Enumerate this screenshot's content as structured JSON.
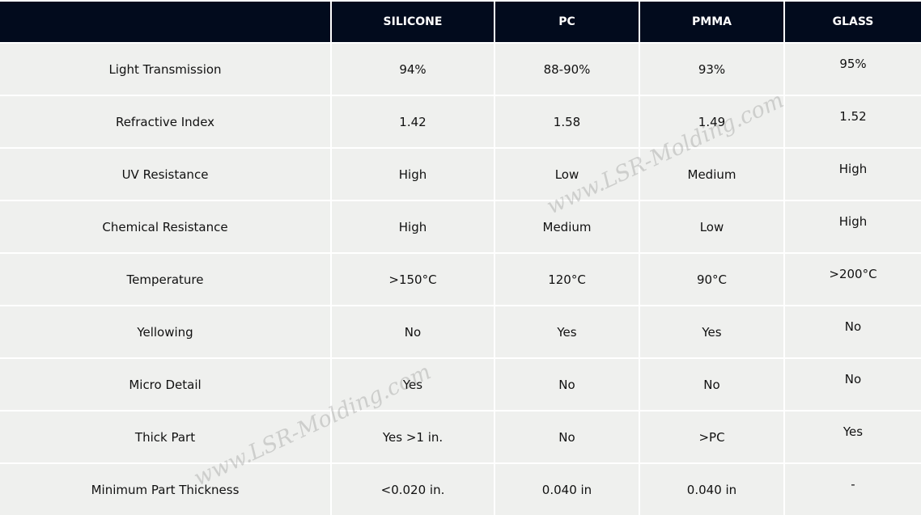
{
  "table": {
    "columns": [
      "SILICONE",
      "PC",
      "PMMA",
      "GLASS"
    ],
    "rows": [
      [
        "Light Transmission",
        "94%",
        "88-90%",
        "93%",
        "95%"
      ],
      [
        "Refractive Index",
        "1.42",
        "1.58",
        "1.49",
        "1.52"
      ],
      [
        "UV Resistance",
        "High",
        "Low",
        "Medium",
        "High"
      ],
      [
        "Chemical Resistance",
        "High",
        "Medium",
        "Low",
        "High"
      ],
      [
        "Temperature",
        ">150°C",
        "120°C",
        "90°C",
        ">200°C"
      ],
      [
        "Yellowing",
        "No",
        "Yes",
        "Yes",
        "No"
      ],
      [
        "Micro Detail",
        "Yes",
        "No",
        "No",
        "No"
      ],
      [
        "Thick Part",
        "Yes >1 in.",
        "No",
        ">PC",
        "Yes"
      ],
      [
        "Minimum Part Thickness",
        "<0.020 in.",
        "0.040 in",
        "0.040 in",
        "-"
      ]
    ]
  },
  "watermarks": [
    "www.LSR-Molding.com",
    "www.LSR-Molding.com"
  ]
}
